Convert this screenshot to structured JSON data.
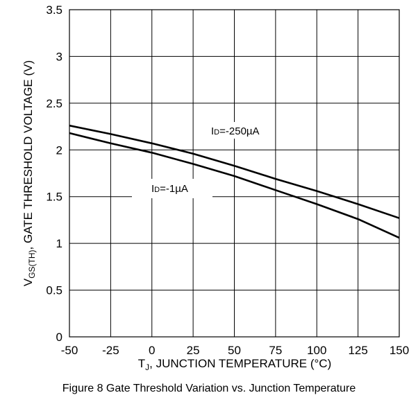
{
  "chart_data": {
    "type": "line",
    "caption": "Figure 8 Gate Threshold Variation vs. Junction Temperature",
    "xlabel": {
      "main": "T",
      "sub": "J",
      "rest": ", JUNCTION TEMPERATURE (°C)"
    },
    "ylabel": {
      "main": "V",
      "sub": "GS(TH)",
      "rest": ",  GATE THRESHOLD VOLTAGE (V)"
    },
    "xlim": [
      -50,
      150
    ],
    "ylim": [
      0,
      3.5
    ],
    "x_ticks": [
      -50,
      -25,
      0,
      25,
      50,
      75,
      100,
      125,
      150
    ],
    "x_tick_labels": [
      "-50",
      "-25",
      "0",
      "25",
      "50",
      "75",
      "100",
      "125",
      "150"
    ],
    "y_ticks": [
      0,
      0.5,
      1,
      1.5,
      2,
      2.5,
      3,
      3.5
    ],
    "y_tick_labels": [
      "0",
      "0.5",
      "1",
      "1.5",
      "2",
      "2.5",
      "3",
      "3.5"
    ],
    "grid": true,
    "series": [
      {
        "name": "ID=-250µA",
        "label": {
          "main": "I",
          "sub": "D",
          "rest": "=-250µA"
        },
        "x": [
          -50,
          -25,
          0,
          25,
          50,
          75,
          100,
          125,
          150
        ],
        "y": [
          2.26,
          2.17,
          2.07,
          1.96,
          1.83,
          1.69,
          1.56,
          1.42,
          1.27
        ]
      },
      {
        "name": "ID=-1µA",
        "label": {
          "main": "I",
          "sub": "D",
          "rest": "=-1µA"
        },
        "x": [
          -50,
          -25,
          0,
          25,
          50,
          75,
          100,
          125,
          150
        ],
        "y": [
          2.18,
          2.07,
          1.97,
          1.85,
          1.72,
          1.57,
          1.42,
          1.26,
          1.06
        ]
      }
    ],
    "line_color": "#000000",
    "grid_color": "#000000"
  }
}
